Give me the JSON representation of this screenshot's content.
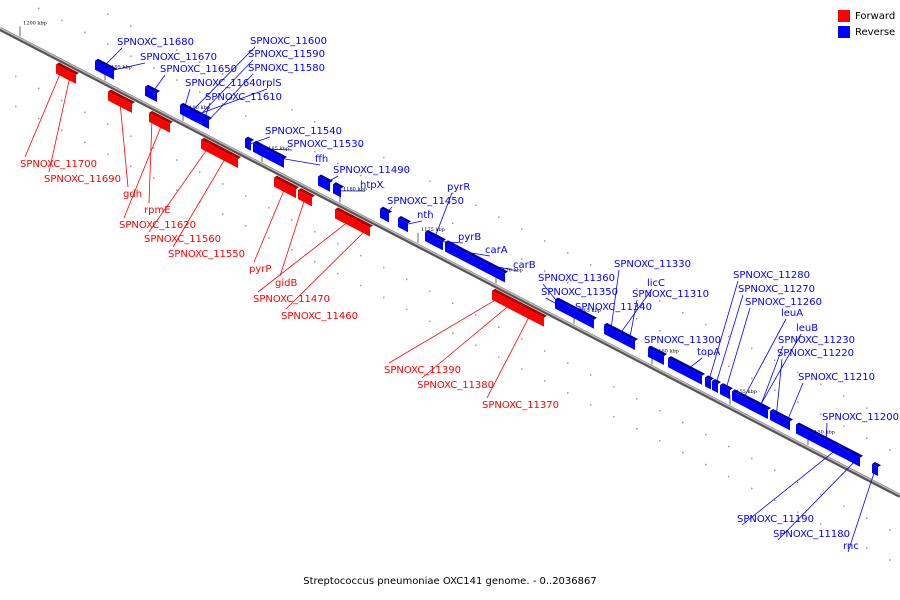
{
  "caption": "Streptococcus pneumoniae OXC141 genome. - 0..2036867",
  "legend": [
    {
      "label": "Forward",
      "color": "#ff0000"
    },
    {
      "label": "Reverse",
      "color": "#0000ff"
    }
  ],
  "colors": {
    "forward": "#ff0000",
    "reverse": "#0000ff",
    "backbone": "#888888"
  },
  "ticks": [
    "1200 kbp",
    "1195 kbp",
    "1190 kbp",
    "1185 kbp",
    "1180 kbp",
    "1175 kbp",
    "1170 kbp",
    "1165 kbp",
    "1160 kbp",
    "1155 kbp",
    "1150 kbp"
  ],
  "genes": [
    {
      "label": "SPNOXC_11680",
      "strand": "reverse"
    },
    {
      "label": "SPNOXC_11670",
      "strand": "reverse"
    },
    {
      "label": "SPNOXC_11650",
      "strand": "reverse"
    },
    {
      "label": "SPNOXC_11640",
      "strand": "reverse"
    },
    {
      "label": "rplS",
      "strand": "reverse"
    },
    {
      "label": "SPNOXC_11610",
      "strand": "reverse"
    },
    {
      "label": "SPNOXC_11600",
      "strand": "reverse"
    },
    {
      "label": "SPNOXC_11590",
      "strand": "reverse"
    },
    {
      "label": "SPNOXC_11580",
      "strand": "reverse"
    },
    {
      "label": "SPNOXC_11540",
      "strand": "reverse"
    },
    {
      "label": "SPNOXC_11530",
      "strand": "reverse"
    },
    {
      "label": "ffh",
      "strand": "reverse"
    },
    {
      "label": "SPNOXC_11490",
      "strand": "reverse"
    },
    {
      "label": "htpX",
      "strand": "reverse"
    },
    {
      "label": "pyrR",
      "strand": "reverse"
    },
    {
      "label": "SPNOXC_11450",
      "strand": "reverse"
    },
    {
      "label": "nth",
      "strand": "reverse"
    },
    {
      "label": "pyrB",
      "strand": "reverse"
    },
    {
      "label": "carA",
      "strand": "reverse"
    },
    {
      "label": "carB",
      "strand": "reverse"
    },
    {
      "label": "SPNOXC_11360",
      "strand": "reverse"
    },
    {
      "label": "SPNOXC_11350",
      "strand": "reverse"
    },
    {
      "label": "SPNOXC_11340",
      "strand": "reverse"
    },
    {
      "label": "SPNOXC_11330",
      "strand": "reverse"
    },
    {
      "label": "licC",
      "strand": "reverse"
    },
    {
      "label": "SPNOXC_11310",
      "strand": "reverse"
    },
    {
      "label": "SPNOXC_11300",
      "strand": "reverse"
    },
    {
      "label": "topA",
      "strand": "reverse"
    },
    {
      "label": "SPNOXC_11280",
      "strand": "reverse"
    },
    {
      "label": "SPNOXC_11270",
      "strand": "reverse"
    },
    {
      "label": "SPNOXC_11260",
      "strand": "reverse"
    },
    {
      "label": "leuA",
      "strand": "reverse"
    },
    {
      "label": "leuB",
      "strand": "reverse"
    },
    {
      "label": "SPNOXC_11230",
      "strand": "reverse"
    },
    {
      "label": "SPNOXC_11220",
      "strand": "reverse"
    },
    {
      "label": "SPNOXC_11210",
      "strand": "reverse"
    },
    {
      "label": "SPNOXC_11200",
      "strand": "reverse"
    },
    {
      "label": "SPNOXC_11190",
      "strand": "reverse"
    },
    {
      "label": "SPNOXC_11180",
      "strand": "reverse"
    },
    {
      "label": "rnc",
      "strand": "reverse"
    },
    {
      "label": "SPNOXC_11700",
      "strand": "forward"
    },
    {
      "label": "SPNOXC_11690",
      "strand": "forward"
    },
    {
      "label": "gdh",
      "strand": "forward"
    },
    {
      "label": "rpmE",
      "strand": "forward"
    },
    {
      "label": "SPNOXC_11620",
      "strand": "forward"
    },
    {
      "label": "SPNOXC_11560",
      "strand": "forward"
    },
    {
      "label": "SPNOXC_11550",
      "strand": "forward"
    },
    {
      "label": "pyrP",
      "strand": "forward"
    },
    {
      "label": "gidB",
      "strand": "forward"
    },
    {
      "label": "SPNOXC_11470",
      "strand": "forward"
    },
    {
      "label": "SPNOXC_11460",
      "strand": "forward"
    },
    {
      "label": "SPNOXC_11390",
      "strand": "forward"
    },
    {
      "label": "SPNOXC_11380",
      "strand": "forward"
    },
    {
      "label": "SPNOXC_11370",
      "strand": "forward"
    }
  ]
}
